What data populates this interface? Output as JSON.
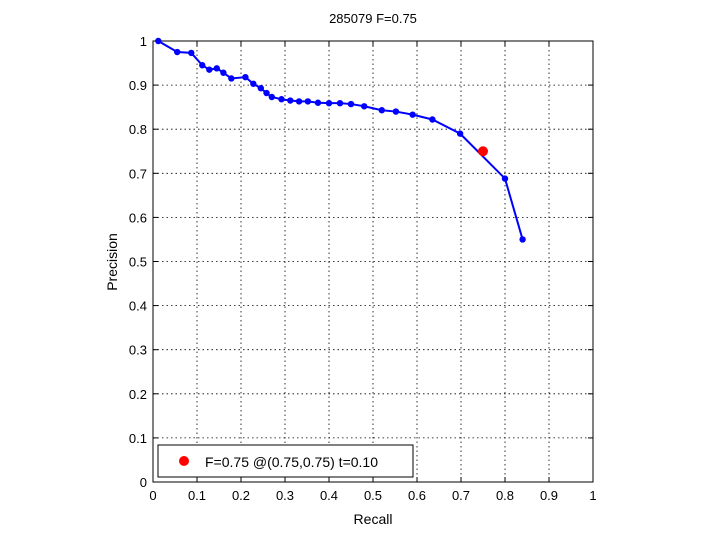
{
  "chart_data": {
    "type": "line",
    "title": "285079 F=0.75",
    "xlabel": "Recall",
    "ylabel": "Precision",
    "xlim": [
      0,
      1
    ],
    "ylim": [
      0,
      1
    ],
    "grid": true,
    "xticks": [
      "0",
      "0.1",
      "0.2",
      "0.3",
      "0.4",
      "0.5",
      "0.6",
      "0.7",
      "0.8",
      "0.9",
      "1"
    ],
    "yticks": [
      "0",
      "0.1",
      "0.2",
      "0.3",
      "0.4",
      "0.5",
      "0.6",
      "0.7",
      "0.8",
      "0.9",
      "1"
    ],
    "series": [
      {
        "color": "#0000ff",
        "x": [
          0.012,
          0.055,
          0.087,
          0.112,
          0.128,
          0.145,
          0.16,
          0.178,
          0.21,
          0.228,
          0.245,
          0.258,
          0.27,
          0.292,
          0.312,
          0.332,
          0.352,
          0.375,
          0.4,
          0.425,
          0.45,
          0.48,
          0.52,
          0.552,
          0.59,
          0.635,
          0.698,
          0.8,
          0.84
        ],
        "y": [
          1.0,
          0.975,
          0.973,
          0.945,
          0.935,
          0.938,
          0.928,
          0.915,
          0.918,
          0.903,
          0.893,
          0.882,
          0.873,
          0.868,
          0.865,
          0.863,
          0.863,
          0.86,
          0.859,
          0.859,
          0.857,
          0.852,
          0.843,
          0.84,
          0.833,
          0.822,
          0.79,
          0.688,
          0.55
        ]
      }
    ],
    "highlight": {
      "x": 0.75,
      "y": 0.75,
      "color": "#ff0000"
    },
    "legend": {
      "position": "bottom-left",
      "text": "F=0.75 @(0.75,0.75) t=0.10"
    }
  }
}
